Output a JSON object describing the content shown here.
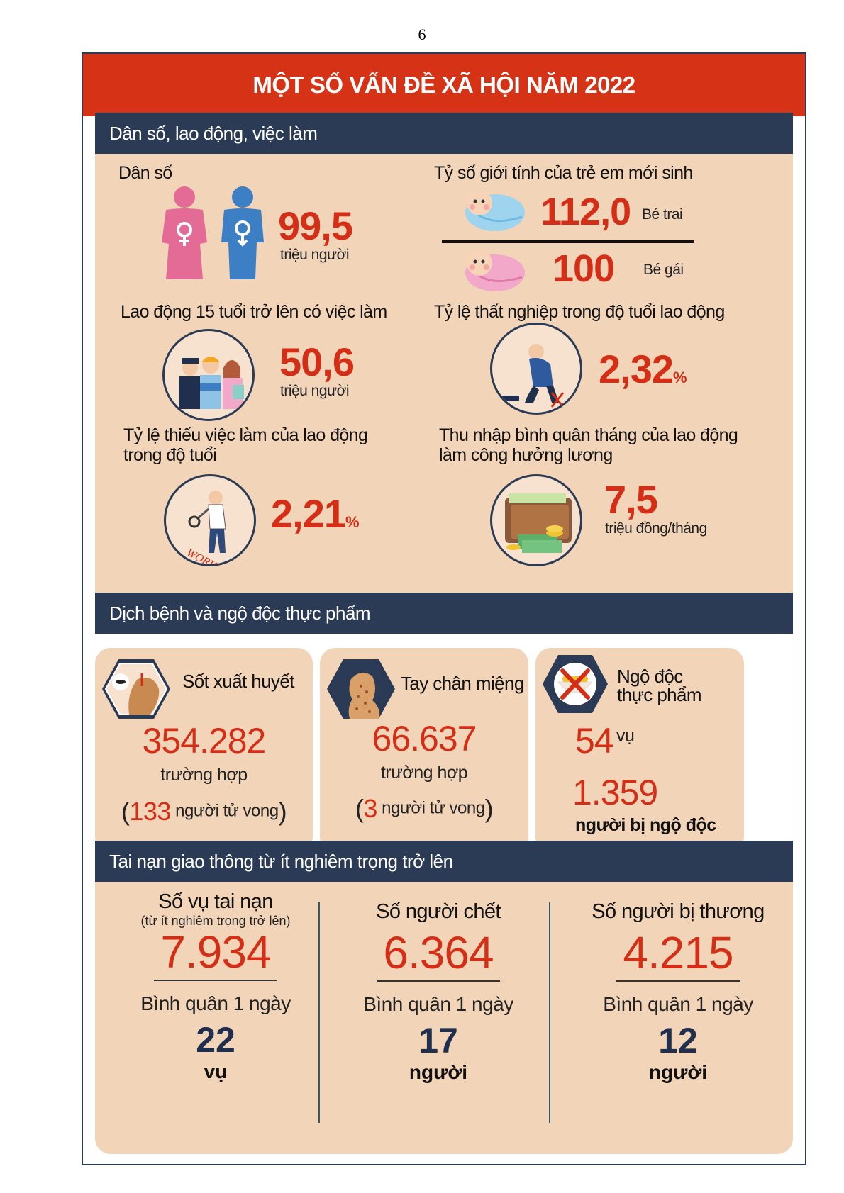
{
  "page_number": "6",
  "title": "MỘT SỐ VẤN ĐỀ XÃ HỘI NĂM 2022",
  "section1": {
    "header": "Dân số, lao động, việc làm",
    "population": {
      "label": "Dân số",
      "value": "99,5",
      "unit": "triệu người"
    },
    "sex_ratio": {
      "label": "Tỷ số giới tính của trẻ em mới sinh",
      "boys_value": "112,0",
      "boys_label": "Bé trai",
      "girls_value": "100",
      "girls_label": "Bé gái"
    },
    "employed": {
      "label": "Lao động 15 tuổi trở lên có việc làm",
      "value": "50,6",
      "unit": "triệu người"
    },
    "unemployment": {
      "label": "Tỷ lệ thất nghiệp trong độ tuổi lao động",
      "value": "2,32",
      "unit": "%"
    },
    "underemployment": {
      "label_line1": "Tỷ lệ thiếu việc làm của lao động",
      "label_line2": "trong độ tuổi",
      "value": "2,21",
      "unit": "%",
      "work_text": "WORK"
    },
    "income": {
      "label_line1": "Thu nhập bình quân tháng của lao động",
      "label_line2": "làm công hưởng lương",
      "value": "7,5",
      "unit": "triệu đồng/tháng"
    }
  },
  "section2": {
    "header": "Dịch bệnh và ngộ độc thực phẩm",
    "dengue": {
      "title": "Sốt xuất huyết",
      "value": "354.282",
      "unit": "trường hợp",
      "deaths_open": "(",
      "deaths_num": "133",
      "deaths_text": "người tử vong",
      "deaths_close": ")"
    },
    "hfmd": {
      "title": "Tay chân miệng",
      "value": "66.637",
      "unit": "trường hợp",
      "deaths_open": "(",
      "deaths_num": "3",
      "deaths_text": "người tử vong",
      "deaths_close": ")"
    },
    "food_poisoning": {
      "title_line1": "Ngộ độc",
      "title_line2": "thực phẩm",
      "cases_value": "54",
      "cases_unit": "vụ",
      "people_value": "1.359",
      "people_unit": "người bị ngộ độc"
    }
  },
  "section3": {
    "header": "Tai nạn giao thông từ ít nghiêm trọng trở lên",
    "accidents": {
      "title": "Số vụ tai nạn",
      "subtitle": "(từ ít nghiêm trọng trở lên)",
      "value": "7.934",
      "avg_label": "Bình quân 1 ngày",
      "avg_value": "22",
      "avg_unit": "vụ"
    },
    "deaths": {
      "title": "Số người chết",
      "value": "6.364",
      "avg_label": "Bình quân 1 ngày",
      "avg_value": "17",
      "avg_unit": "người"
    },
    "injured": {
      "title": "Số người bị thương",
      "value": "4.215",
      "avg_label": "Bình quân 1 ngày",
      "avg_value": "12",
      "avg_unit": "người"
    }
  },
  "colors": {
    "red": "#d63316",
    "navy": "#2c3b55",
    "panel": "#f2d4b8",
    "female": "#e46b95",
    "male": "#3d7fc4"
  },
  "icons": [
    "female-icon",
    "male-icon",
    "baby-boy-icon",
    "baby-girl-icon",
    "workers-icon",
    "unemployed-man-icon",
    "magnifier-man-icon",
    "wallet-money-icon",
    "mosquito-head-icon",
    "child-rash-icon",
    "food-bowl-cross-icon"
  ]
}
